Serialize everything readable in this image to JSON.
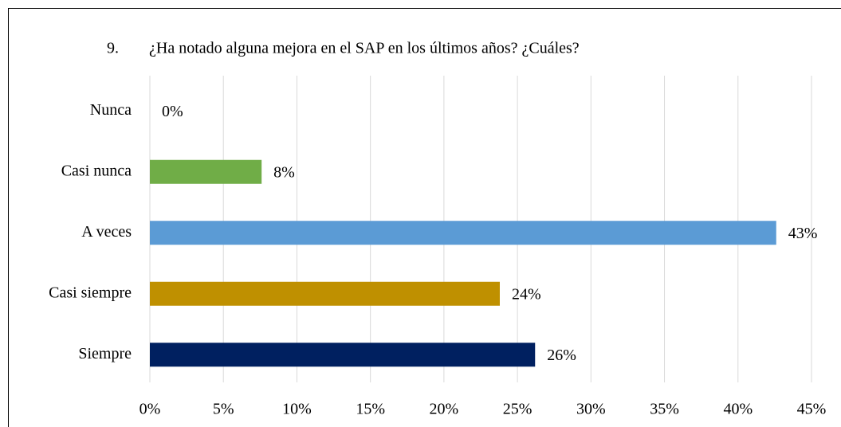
{
  "chart_data": {
    "type": "barh",
    "title_number": "9.",
    "title": "¿Ha notado alguna mejora en el SAP en los últimos años? ¿Cuáles?",
    "categories": [
      "Nunca",
      "Casi nunca",
      "A veces",
      "Casi siempre",
      "Siempre"
    ],
    "values": [
      0,
      7.6,
      42.6,
      23.8,
      26.2
    ],
    "value_labels": [
      "0%",
      "8%",
      "43%",
      "24%",
      "26%"
    ],
    "colors": [
      "#4472c4",
      "#70ad47",
      "#5b9bd5",
      "#bf9000",
      "#002060"
    ],
    "xlim": [
      0,
      45
    ],
    "xticks": [
      {
        "value": 0,
        "label": "0%"
      },
      {
        "value": 5,
        "label": "5%"
      },
      {
        "value": 10,
        "label": "10%"
      },
      {
        "value": 15,
        "label": "15%"
      },
      {
        "value": 20,
        "label": "20%"
      },
      {
        "value": 25,
        "label": "25%"
      },
      {
        "value": 30,
        "label": "30%"
      },
      {
        "value": 35,
        "label": "35%"
      },
      {
        "value": 40,
        "label": "40%"
      },
      {
        "value": 45,
        "label": "45%"
      }
    ],
    "grid": true
  }
}
